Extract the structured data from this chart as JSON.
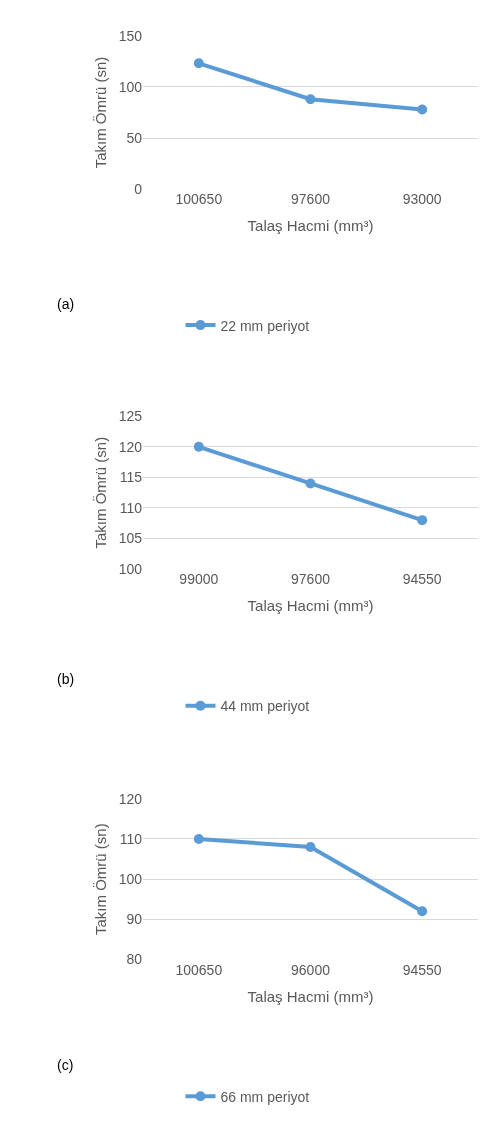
{
  "chart_data": [
    {
      "type": "line",
      "categories": [
        "100650",
        "97600",
        "93000"
      ],
      "xlabel": "Talaş Hacmi (mm³)",
      "ylabel": "Takım Ömrü (sn)",
      "annotations": [
        "(a)"
      ],
      "series": [
        {
          "name": "22 mm periyot",
          "color": "#5b9bd5",
          "values": [
            123,
            88,
            78
          ]
        }
      ],
      "ylim": [
        0,
        150
      ],
      "yticks": [
        0,
        50,
        100,
        150
      ],
      "grid": "y",
      "legend": "bottom",
      "marker": "circle"
    },
    {
      "type": "line",
      "categories": [
        "99000",
        "97600",
        "94550"
      ],
      "xlabel": "Talaş Hacmi (mm³)",
      "ylabel": "Takım Ömrü (sn)",
      "annotations": [
        "(b)"
      ],
      "series": [
        {
          "name": "44 mm periyot",
          "color": "#5b9bd5",
          "values": [
            120,
            114,
            108
          ]
        }
      ],
      "ylim": [
        100,
        125
      ],
      "yticks": [
        100,
        105,
        110,
        115,
        120,
        125
      ],
      "grid": "y",
      "legend": "bottom",
      "marker": "circle"
    },
    {
      "type": "line",
      "categories": [
        "100650",
        "96000",
        "94550"
      ],
      "xlabel": "Talaş Hacmi (mm³)",
      "ylabel": "Takım Ömrü (sn)",
      "annotations": [
        "(c)"
      ],
      "series": [
        {
          "name": "66 mm periyot",
          "color": "#5b9bd5",
          "values": [
            110,
            108,
            92
          ]
        }
      ],
      "ylim": [
        80,
        120
      ],
      "yticks": [
        80,
        90,
        100,
        110,
        120
      ],
      "grid": "y",
      "legend": "bottom",
      "marker": "circle"
    }
  ]
}
